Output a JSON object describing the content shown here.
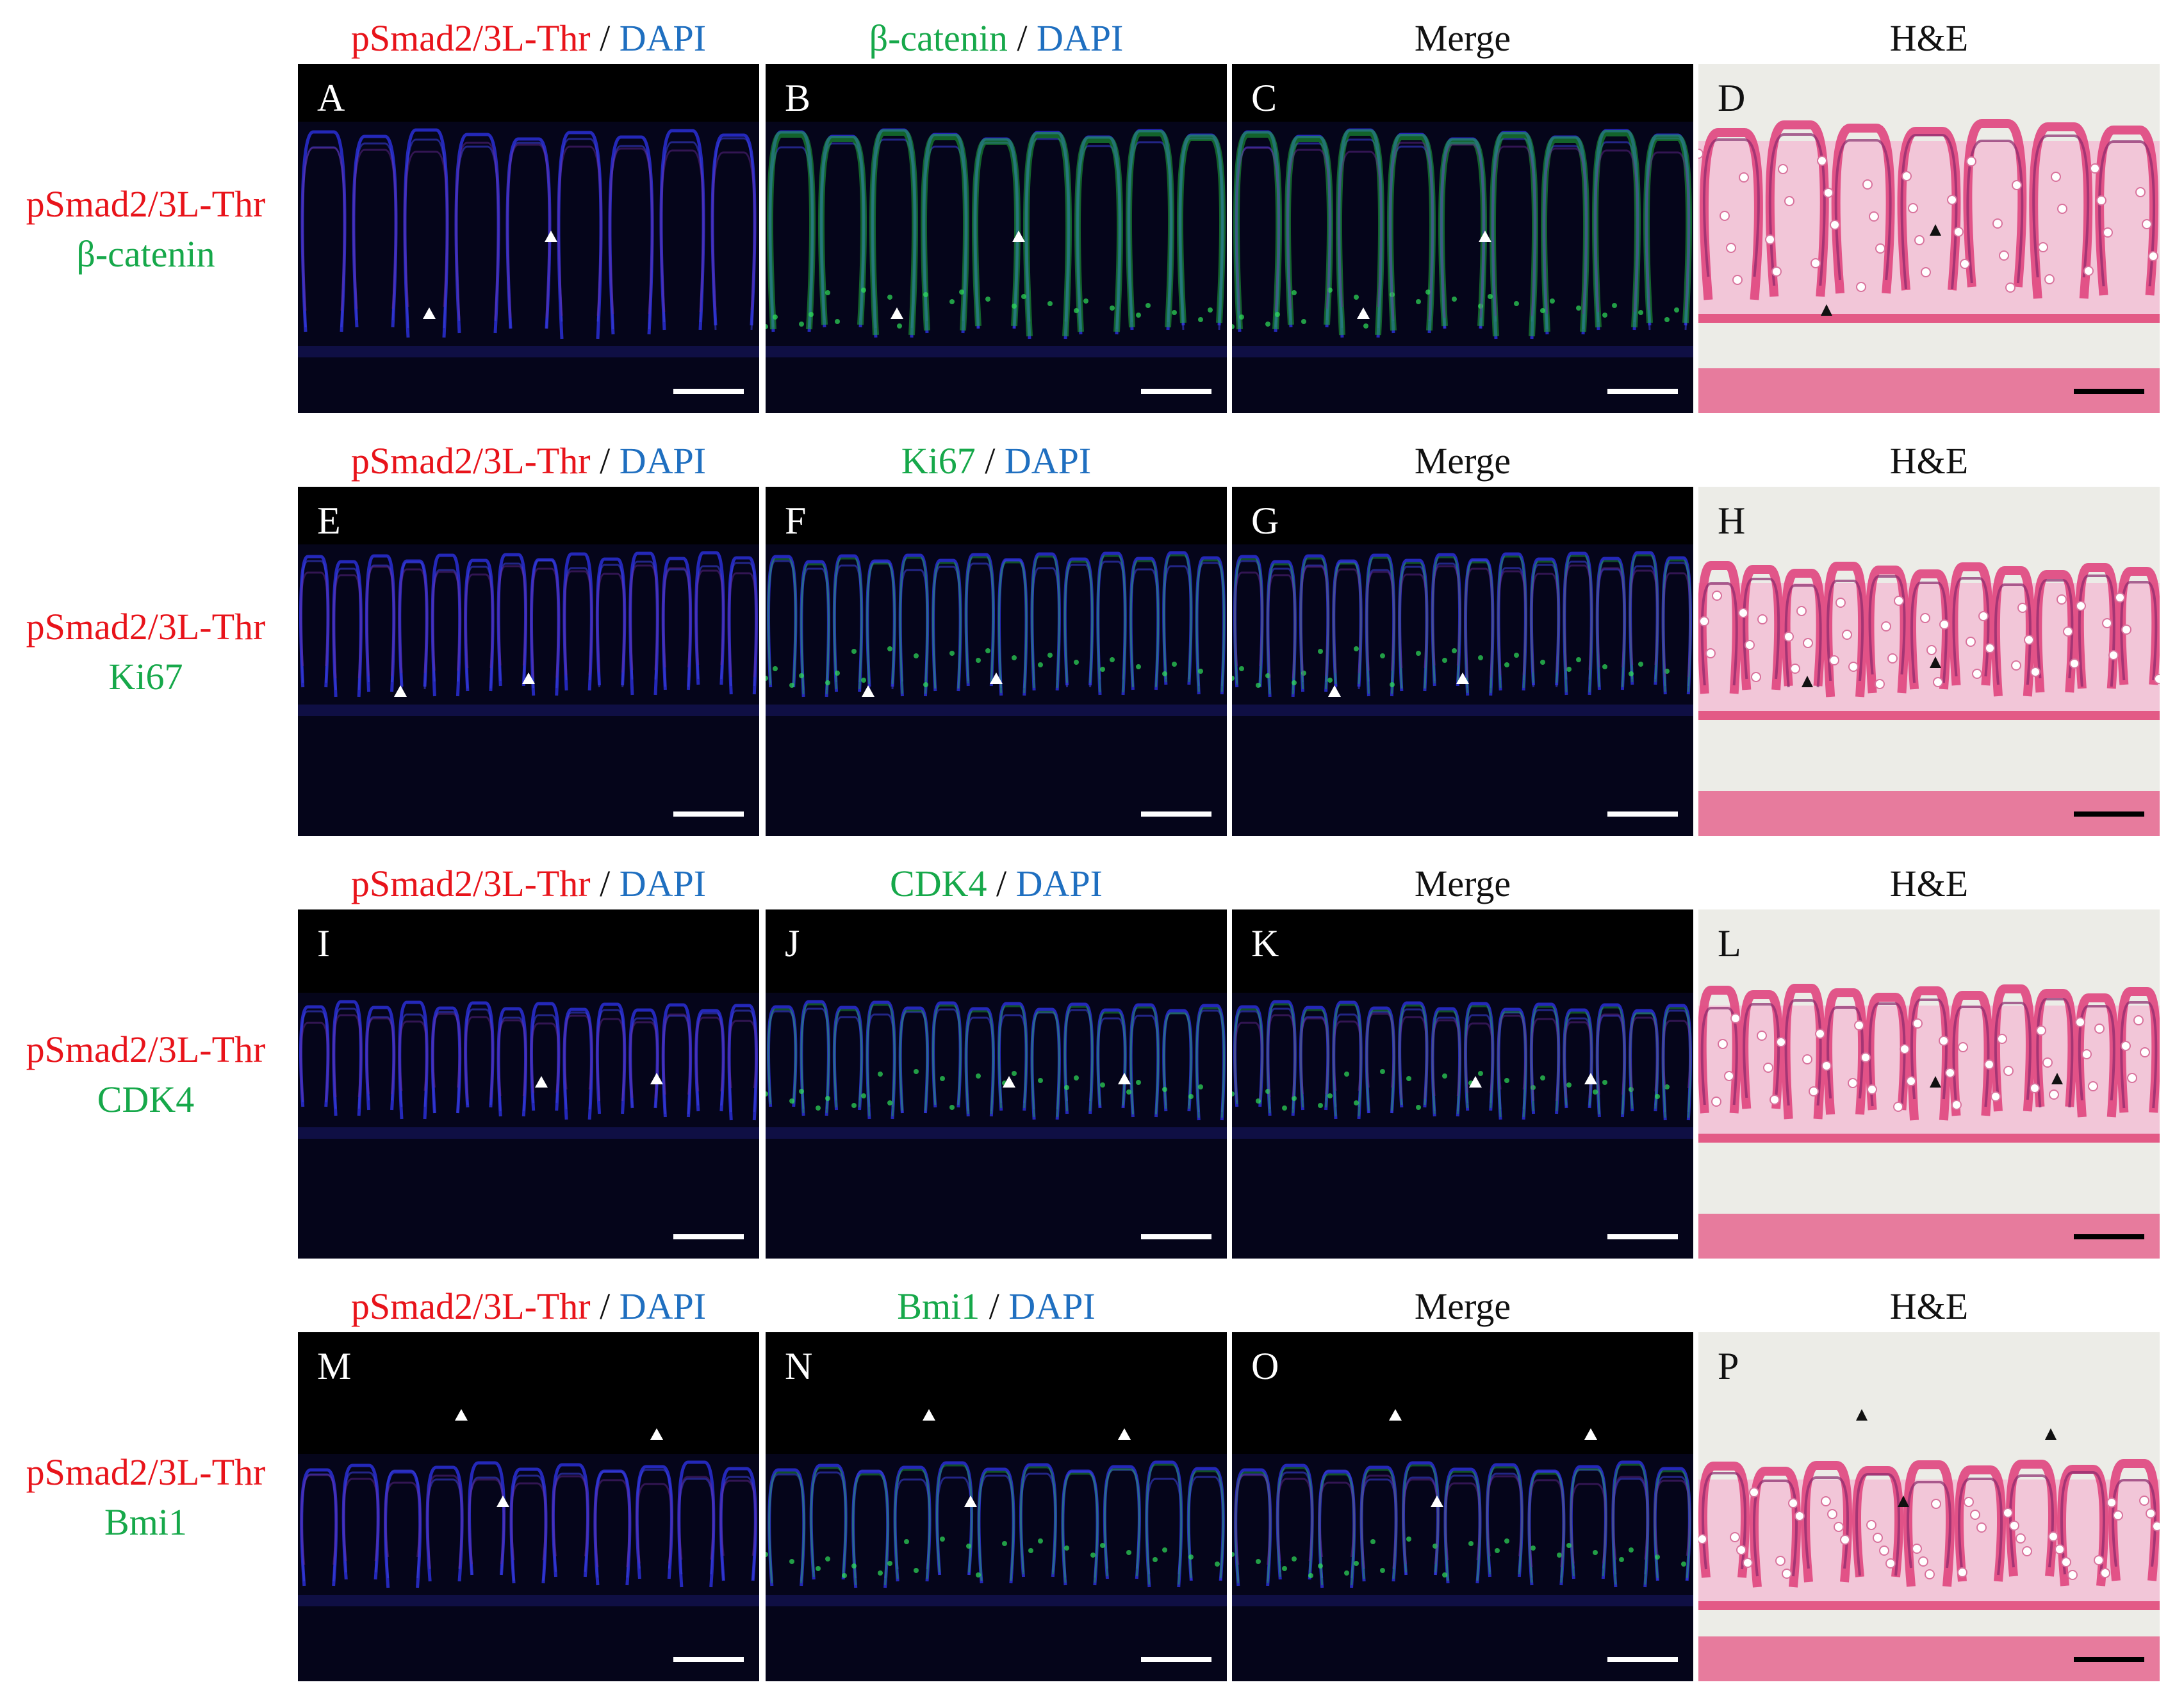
{
  "columns": [
    {
      "stain": "pSmad2/3L-Thr",
      "sep": " / ",
      "counter": "DAPI"
    },
    {
      "stain_by_row": [
        "β-catenin",
        "Ki67",
        "CDK4",
        "Bmi1"
      ],
      "sep": " / ",
      "counter": "DAPI"
    },
    {
      "title": "Merge"
    },
    {
      "title": "H&E"
    }
  ],
  "rows": [
    {
      "label_red": "pSmad2/3L-Thr",
      "label_green": "β-catenin",
      "letters": [
        "A",
        "B",
        "C",
        "D"
      ],
      "marker": "β-catenin"
    },
    {
      "label_red": "pSmad2/3L-Thr",
      "label_green": "Ki67",
      "letters": [
        "E",
        "F",
        "G",
        "H"
      ],
      "marker": "Ki67"
    },
    {
      "label_red": "pSmad2/3L-Thr",
      "label_green": "CDK4",
      "letters": [
        "I",
        "J",
        "K",
        "L"
      ],
      "marker": "CDK4"
    },
    {
      "label_red": "pSmad2/3L-Thr",
      "label_green": "Bmi1",
      "letters": [
        "M",
        "N",
        "O",
        "P"
      ],
      "marker": "Bmi1"
    }
  ],
  "colors": {
    "red_label": "#e8131a",
    "green_label": "#16a84a",
    "blue_label": "#1f6fc0",
    "dapi": "#2a2fd6",
    "he_pink": "#e0457e",
    "he_purple": "#8a2a6c"
  }
}
